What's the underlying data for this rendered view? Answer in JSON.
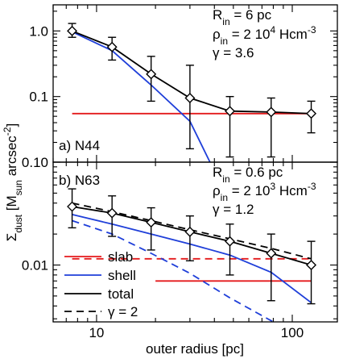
{
  "x_axis": {
    "label": "outer radius [pc]",
    "scale": "log",
    "range": [
      6,
      170
    ],
    "tick_labels": [
      {
        "value": 10,
        "label": "10"
      },
      {
        "value": 100,
        "label": "100"
      }
    ]
  },
  "y_axis_label": {
    "main": "Σ",
    "main_sub": "dust",
    "bracket_open": " [M",
    "bracket_sub": "sun",
    "unit": " arcsec",
    "unit_sup": "-2",
    "bracket_close": "]"
  },
  "legend": {
    "placement": "bottom-left",
    "entries": [
      {
        "label": "slab",
        "color": "#e41a1c",
        "style": "solid"
      },
      {
        "label": "shell",
        "color": "#1f3fd9",
        "style": "solid"
      },
      {
        "label": "total",
        "color": "#000000",
        "style": "solid"
      },
      {
        "label": "γ = 2",
        "color": "#000000",
        "style": "dashed"
      }
    ]
  },
  "chart_data": [
    {
      "type": "line",
      "panel_label": "a) N44",
      "annotations": [
        {
          "base": "R",
          "sub": "in",
          "rest": " = 6 pc"
        },
        {
          "base": "ρ",
          "sub": "in",
          "rest": " = 2 10",
          "sup": "4",
          "tail": " Hcm",
          "sup2": "-3"
        },
        {
          "base": "γ",
          "rest": "   = 3.6"
        }
      ],
      "yscale": "log",
      "ylim": [
        0.01,
        2.5
      ],
      "y_ticks": [
        {
          "value": 0.1,
          "label": "0.1"
        },
        {
          "value": 1,
          "label": "1.0"
        }
      ],
      "observed": {
        "x": [
          7.5,
          12,
          19,
          30,
          48,
          78,
          125
        ],
        "y": [
          1.0,
          0.57,
          0.22,
          0.095,
          0.06,
          0.058,
          0.055
        ],
        "yerr_low": [
          0.8,
          0.36,
          0.085,
          0.016,
          0.012,
          0.012,
          0.028
        ],
        "yerr_high": [
          1.3,
          0.8,
          0.41,
          0.3,
          0.1,
          0.095,
          0.085
        ]
      },
      "series": [
        {
          "role": "slab",
          "color": "#e41a1c",
          "dash": false,
          "x": [
            7.5,
            130
          ],
          "y": [
            0.055,
            0.055
          ]
        },
        {
          "role": "shell",
          "color": "#1f3fd9",
          "dash": false,
          "x": [
            7.5,
            12,
            19,
            30,
            38
          ],
          "y": [
            0.97,
            0.5,
            0.15,
            0.042,
            0.01
          ]
        },
        {
          "role": "total",
          "color": "#000000",
          "dash": false,
          "x": [
            7.5,
            12,
            19,
            30,
            48,
            78,
            125
          ],
          "y": [
            1.0,
            0.57,
            0.22,
            0.095,
            0.06,
            0.058,
            0.055
          ]
        }
      ]
    },
    {
      "type": "line",
      "panel_label": "b) N63",
      "annotations": [
        {
          "base": "R",
          "sub": "in",
          "rest": " = 0.6 pc"
        },
        {
          "base": "ρ",
          "sub": "in",
          "rest": " = 2 10",
          "sup": "3",
          "tail": " Hcm",
          "sup2": "-3"
        },
        {
          "base": "γ",
          "rest": "   = 1.2"
        }
      ],
      "yscale": "log",
      "ylim": [
        0.0028,
        0.1
      ],
      "y_ticks": [
        {
          "value": 0.01,
          "label": "0.01"
        },
        {
          "value": 0.1,
          "label": "0.10"
        }
      ],
      "observed": {
        "x": [
          7.5,
          12,
          19,
          30,
          48,
          78,
          125
        ],
        "y": [
          0.037,
          0.032,
          0.026,
          0.021,
          0.017,
          0.013,
          0.01
        ],
        "yerr_low": [
          0.023,
          0.019,
          0.014,
          0.011,
          0.008,
          0.0045,
          0.0042
        ],
        "yerr_high": [
          0.055,
          0.047,
          0.036,
          0.03,
          0.025,
          0.02,
          0.017
        ]
      },
      "series": [
        {
          "role": "slab",
          "color": "#e41a1c",
          "dash": false,
          "x": [
            20,
            125
          ],
          "y": [
            0.007,
            0.007
          ]
        },
        {
          "role": "slab",
          "color": "#e41a1c",
          "dash": true,
          "x": [
            7.5,
            125
          ],
          "y": [
            0.0115,
            0.0115
          ]
        },
        {
          "role": "shell",
          "color": "#1f3fd9",
          "dash": false,
          "x": [
            7.5,
            12,
            19,
            30,
            48,
            78,
            125
          ],
          "y": [
            0.031,
            0.025,
            0.02,
            0.016,
            0.0125,
            0.0085,
            0.0043
          ]
        },
        {
          "role": "shell",
          "color": "#1f3fd9",
          "dash": true,
          "x": [
            7.5,
            12,
            19,
            30,
            48,
            80
          ],
          "y": [
            0.027,
            0.02,
            0.013,
            0.0083,
            0.0048,
            0.0028
          ]
        },
        {
          "role": "total",
          "color": "#000000",
          "dash": false,
          "x": [
            7.5,
            12,
            19,
            30,
            48,
            78,
            125
          ],
          "y": [
            0.037,
            0.032,
            0.026,
            0.021,
            0.017,
            0.013,
            0.01
          ]
        },
        {
          "role": "total",
          "color": "#000000",
          "dash": true,
          "x": [
            7.5,
            12,
            19,
            30,
            48,
            78,
            125
          ],
          "y": [
            0.04,
            0.033,
            0.027,
            0.022,
            0.018,
            0.0145,
            0.0115
          ]
        }
      ]
    }
  ]
}
